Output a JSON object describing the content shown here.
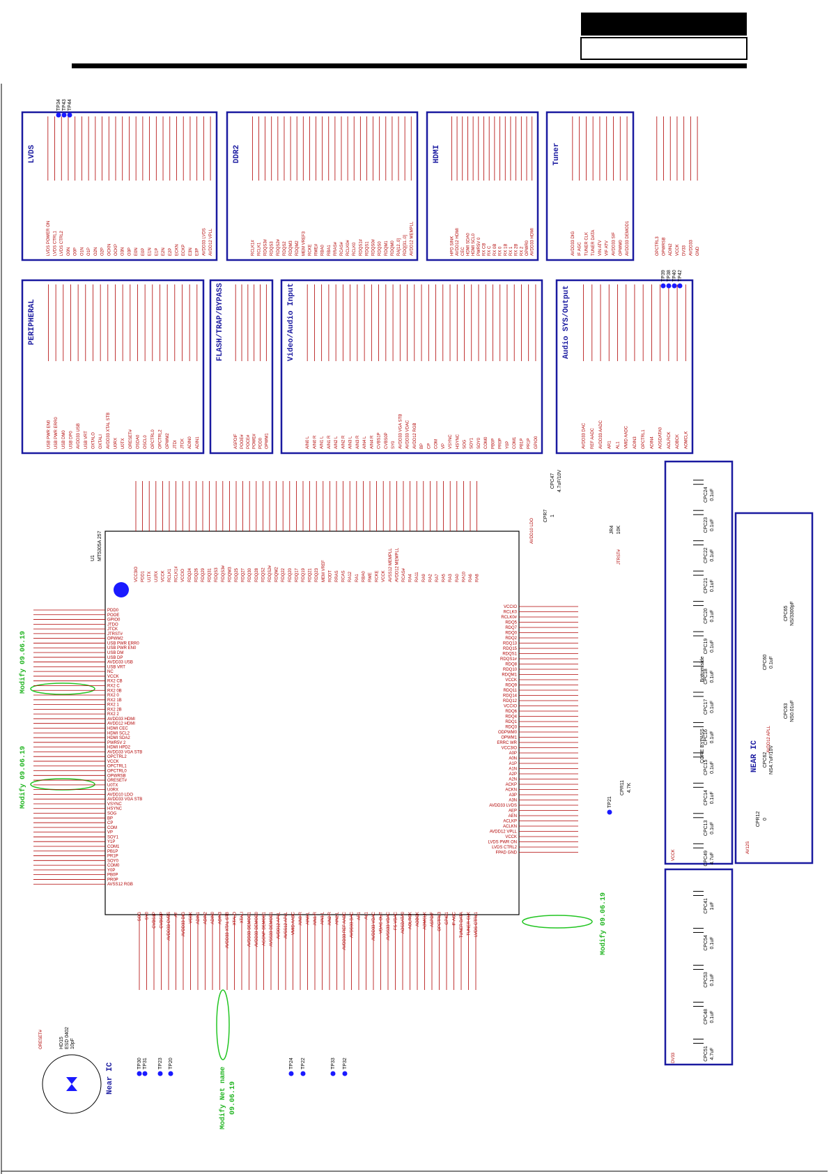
{
  "blocks": [
    {
      "title": "LVDS",
      "pins": [
        "LVDS POWER ON",
        "LVDS CTRL1",
        "LVDS CTRL2",
        "O0N",
        "O0P",
        "O1N",
        "O1P",
        "O2N",
        "O2P",
        "OCKN",
        "OCKP",
        "O3N",
        "O3P",
        "E0N",
        "E0P",
        "E1N",
        "E1P",
        "E2N",
        "E2P",
        "ECKN",
        "ECKP",
        "E3N",
        "E3P",
        "AVDD33 LVDS",
        "AVDD12 VPLL"
      ]
    },
    {
      "title": "DDR2",
      "pins": [
        "RCLK1#",
        "RCLK1",
        "RDQS3#",
        "RDQS3",
        "RDQS2#",
        "RDQS2",
        "RDQM3",
        "RDQM2",
        "MEM VREF3",
        "RCKE",
        "RWE#",
        "RBA0",
        "RBA1",
        "RRAS#",
        "RCAS#",
        "RCLK0#",
        "RCLK0",
        "RDQS1#",
        "RDQS1",
        "RDQS0#",
        "RDQS0",
        "RDQM1",
        "RDQM0",
        "RA[12..0]",
        "RDQ[31..0]",
        "AVDD12 MEMPLL"
      ]
    },
    {
      "title": "HDMI",
      "pins": [
        "HPD SINK",
        "AVDD12 HDMI",
        "CEC",
        "HDMI SDA0",
        "HDMI SCL0",
        "PWR5V 0",
        "RX CB",
        "RX C",
        "RX 0B",
        "RX 0",
        "RX 1B",
        "RX 1",
        "RX 2B",
        "RX 2",
        "OPWR0",
        "AVDD33 HDMI"
      ]
    },
    {
      "title": "Tuner",
      "pins": [
        "AVDD33 DIG",
        "IF AGC",
        "TUNER CLK",
        "TUNER DATA",
        "VIN ATV",
        "VIF ATV",
        "AVDD33 SIF",
        "OPWM0",
        "AVDD33 DEMOD1"
      ]
    },
    {
      "title": "PERIPHERAL",
      "pins": [
        "USB PWR EN0",
        "USB PWR ERR0",
        "USB DM0",
        "USB DP0",
        "AVDD33 USB",
        "USB VRT",
        "OXTALO",
        "OXTALI",
        "AVDD33 XTAL STB",
        "U0RX",
        "U0TX",
        "ORESET#",
        "OSDA0",
        "OSCL0",
        "OPCTRL0",
        "OPCTRL2",
        "OPWM2",
        "JTDI",
        "JTCK",
        "ADIN0",
        "ADIN1"
      ]
    },
    {
      "title": "FLASH/TRAP/BYPASS",
      "pins": [
        "ASPDIF",
        "POOE#",
        "POCE#",
        "POWE#",
        "PDD0",
        "OPWM1"
      ]
    },
    {
      "title": "Video/Audio Input",
      "pins": [
        "AIN0 L",
        "AIN0 R",
        "AIN1 L",
        "AIN1 R",
        "AIN2 L",
        "AIN2 R",
        "AIN3 L",
        "AIN3 R",
        "AIN4 L",
        "AIN4 R",
        "CVBS1P",
        "CVBS0P",
        "SY0",
        "AVDD33 VGA STB",
        "AVDD33 VDAC",
        "AVDD12 RGB",
        "BP",
        "CP",
        "COM",
        "VP",
        "VSYNC",
        "HSYNC",
        "SOG",
        "SOY1",
        "SOY0",
        "COM0",
        "PB0P",
        "PR0P",
        "Y0P",
        "COM1",
        "PB1P",
        "PR1P",
        "GPIO0"
      ]
    },
    {
      "title": "Audio SYS/Output",
      "pins": [
        "AVDD33 DAC",
        "REF AADC",
        "AVDD33 AADC",
        "AR1",
        "AL1",
        "VMID AADC",
        "ADIN3",
        "OPCTRL1",
        "ADIN4",
        "AOSDATA0",
        "AOLRCK",
        "AOBCK",
        "AOMCLK"
      ]
    },
    {
      "title": "",
      "pins": [
        "OPCTRL3",
        "OPWRSB",
        "ADIN2",
        "VCCK",
        "DV33",
        "AVDD33",
        "GND"
      ]
    }
  ],
  "ic": {
    "ref": "U1",
    "part": "MT5305A 257",
    "left_pins": [
      "PDD0",
      "POOE",
      "GPIO0",
      "JTDO",
      "JTCK",
      "JTRST#",
      "OPWM2",
      "USB PWR ERR0",
      "USB PWR EN0",
      "USB DM",
      "USB DP",
      "AVDD33 USB",
      "USB VRT",
      "NC",
      "VCCK",
      "RX2 CB",
      "RX2 C",
      "RX2 0B",
      "RX2 0",
      "RX2 1B",
      "RX2 1",
      "RX2 2B",
      "RX2 2",
      "AVDD33 HDMI",
      "AVDD12 HDMI",
      "HDMI CEC",
      "HDMI SCL2",
      "HDMI SDA2",
      "PWR5V 2",
      "HDMI HPD2",
      "AVDD33 VGA STB",
      "OPCTRL2",
      "VCCK",
      "OPCTRL1",
      "OPCTRL0",
      "OPWRSB",
      "ORESET#",
      "U0TX",
      "U0RX",
      "AVDD10 LDO",
      "AVDD33 VGA STB",
      "VSYNC",
      "HSYNC",
      "SOG",
      "BP",
      "CP",
      "COM",
      "VP",
      "SOY1",
      "Y1P",
      "COM1",
      "PB1P",
      "PR1P",
      "SOY0",
      "COM0",
      "Y0P",
      "PB0P",
      "PR0P",
      "AVSS12 RGB"
    ],
    "right_pins": [
      "VCCIO",
      "RCLK0",
      "RCLK0#",
      "RDQ5",
      "RDQ7",
      "RDQ0",
      "RDQ2",
      "RDQ13",
      "RDQ15",
      "RDQS1",
      "RDQS1#",
      "RDQ8",
      "RDQ10",
      "RDQM1",
      "VCCK",
      "RDQ9",
      "RDQ11",
      "RDQ14",
      "RDQ12",
      "VCCIO",
      "RDQ6",
      "RDQ4",
      "RDQ1",
      "RDQ3",
      "ODPWM0",
      "OPWM1",
      "ERRC WR",
      "VCC3IO",
      "A0P",
      "A0N",
      "A1P",
      "A1N",
      "A2P",
      "A2N",
      "ACKP",
      "ACKN",
      "A3P",
      "A3N",
      "AVDD33 LVDS",
      "AEP",
      "AEN",
      "ACLKP",
      "ACLKN",
      "AVDD12 VPLL",
      "VCCK",
      "LVDS PWR ON",
      "LVDS CTRL2",
      "FPAD GND"
    ],
    "top_pins": [
      "VCC3IO",
      "PDD1",
      "U1TX",
      "U1RX",
      "VCCK",
      "RCLK1",
      "RCLK1#",
      "VCCIO",
      "RDQ24",
      "RDQ26",
      "RDQ29",
      "RDQ31",
      "RDQS3",
      "RDQS3#",
      "RDQM3",
      "RDQ25",
      "RDQ27",
      "RDQ30",
      "RDQ28",
      "RDQS2",
      "RDQS2#",
      "RDQM2",
      "RDQ22",
      "RDQ20",
      "RDQ17",
      "RDQ19",
      "RDQ21",
      "RDQ23",
      "MEM VREF",
      "RODT",
      "RRAS",
      "RCAS",
      "RA12",
      "RA1",
      "RBA0",
      "RWE",
      "RCKE",
      "VCCK",
      "AVSS12 MEMPLL",
      "AVDD12 MEMPLL",
      "RCAS#",
      "RA4",
      "RA11",
      "RA9",
      "RA2",
      "RA7",
      "RA5",
      "RA3",
      "RA0",
      "RA10",
      "RA6",
      "RA8"
    ],
    "bottom_pins": [
      "SOG",
      "SY0",
      "CVBS1P",
      "CVBS0P",
      "AVDD33 CVBS",
      "AF",
      "AVDD33 DIG",
      "VCCK",
      "ADIN1",
      "ADIN2",
      "ADIN0",
      "ADIN3",
      "AVDD33 XTAL STB",
      "XTALO",
      "XTALI",
      "AVDD33 DEMOD1",
      "AVDD33 DEMOD0",
      "AGCNP DEMOD1",
      "AVSS33 DEMOD1",
      "AVDD12 APLL",
      "AVSS12 APLL",
      "VMID AADC",
      "AIN0 R",
      "AIN0 L",
      "AIN1 R",
      "AIN1 L",
      "AIN2 R",
      "AIN2 L",
      "AVDD33 REF AADC",
      "AVDD33 DAC",
      "AR1",
      "AL1",
      "AVDD33 VDAC",
      "VDAC OUT",
      "AVSS33 VDAC",
      "FS VDAC",
      "AOSDATA0",
      "AOLRCK",
      "AOBCK",
      "AOMCLK",
      "ASPDIF",
      "OPCTRL3",
      "GPIO1",
      "IF AGC",
      "TUNER DATA",
      "TUNER CLK",
      "LVDS CTRL1"
    ]
  },
  "notes": {
    "modify_1": "Modify 09.06.19",
    "modify_2": "Modify 09.06.19",
    "modify_3": "Modify 09.06.19",
    "modify_net": "Modify Net name",
    "modify_net_date": "09.06.19",
    "near_ic_left": "Near IC",
    "near_ic_right": "NEAR IC",
    "core_bypass": "CORE BYPASS",
    "bottom_side": "Bottom side",
    "esd_ref": "HD15",
    "esd_part": "ESD 0402",
    "esd_value": "10pF",
    "oreset": "ORESET#",
    "avdd10_ldo": "AVDD10 LDO",
    "jtrst": "JTRST#",
    "apll": "AVDD12 APLL",
    "av12s": "AV12S",
    "vcck": "VCCK",
    "dv33": "DV33"
  },
  "capacitors_bypass": [
    {
      "ref": "CPC24",
      "value": "0.1uF"
    },
    {
      "ref": "CPC23",
      "value": "0.1uF"
    },
    {
      "ref": "CPC22",
      "value": "0.1uF"
    },
    {
      "ref": "CPC21",
      "value": "0.1uF"
    },
    {
      "ref": "CPC20",
      "value": "0.1uF"
    },
    {
      "ref": "CPC19",
      "value": "0.1uF"
    },
    {
      "ref": "CPC18",
      "value": "0.1uF"
    },
    {
      "ref": "CPC17",
      "value": "0.1uF"
    },
    {
      "ref": "CPC16",
      "value": "0.1uF"
    },
    {
      "ref": "CPC15",
      "value": "0.1uF"
    },
    {
      "ref": "CPC14",
      "value": "0.1uF"
    },
    {
      "ref": "CPC13",
      "value": "0.1uF"
    },
    {
      "ref": "CPC49",
      "value": "4.7uF"
    }
  ],
  "capacitors_near": [
    {
      "ref": "CPC62",
      "value": "NS4.7uF/10V"
    },
    {
      "ref": "CPC63",
      "value": "NS0.01uF"
    },
    {
      "ref": "CPC60",
      "value": "0.1uF"
    },
    {
      "ref": "CPC65",
      "value": "NS/3300pF"
    }
  ],
  "capacitors_dv33": [
    {
      "ref": "CPC41",
      "value": "1uF"
    },
    {
      "ref": "CPC54",
      "value": "0.1uF"
    },
    {
      "ref": "CPC53",
      "value": "0.1uF"
    },
    {
      "ref": "CPC48",
      "value": "0.1uF"
    },
    {
      "ref": "CPC51",
      "value": "4.7uF"
    }
  ],
  "resistors": [
    {
      "ref": "CPR7",
      "value": "1"
    },
    {
      "ref": "CPC47",
      "value": "4.7uF/10V"
    },
    {
      "ref": "JR4",
      "value": "10K"
    },
    {
      "ref": "CPR11",
      "value": "4.7K"
    },
    {
      "ref": "CPR12",
      "value": "0"
    }
  ],
  "test_points": {
    "top": [
      "TP34",
      "TP43",
      "TP44"
    ],
    "audio": [
      "TP39",
      "TP38",
      "TP40",
      "TP42"
    ],
    "bottom": [
      "TP30",
      "TP31",
      "TP23",
      "TP20",
      "TP24",
      "TP22",
      "TP33",
      "TP32"
    ],
    "right": "TP21"
  }
}
